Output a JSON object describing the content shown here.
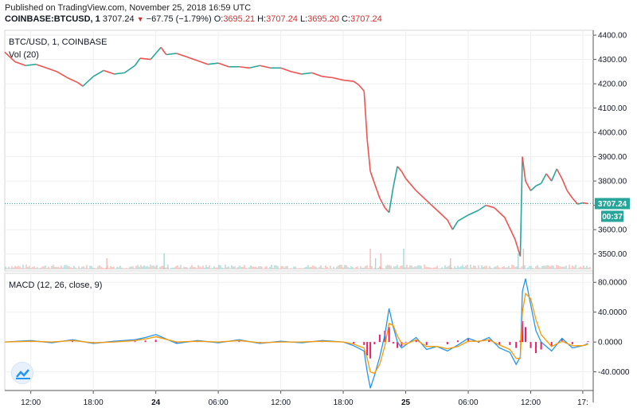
{
  "header": {
    "published": "Published on TradingView.com, November 25, 2018 16:59 UTC",
    "symbol": "COINBASE:BTCUSD, 1",
    "last": "3707.24",
    "change": "−67.75 (−1.79%)",
    "o_label": "O:",
    "o_val": "3695.21",
    "h_label": "H:",
    "h_val": "3707.24",
    "l_label": "L:",
    "l_val": "3695.20",
    "c_label": "C:",
    "c_val": "3707.24"
  },
  "price_pane": {
    "legend_symbol": "BTC/USD, 1, COINBASE",
    "legend_vol": "Vol (20)",
    "price_badge": "3707.24",
    "countdown_badge": "00:37"
  },
  "macd_pane": {
    "legend": "MACD (12, 26, close, 9)"
  },
  "colors": {
    "up": "#26a69a",
    "down": "#ef5350",
    "macd_line": "#2196f3",
    "signal_line": "#ff9800",
    "histogram": "#e91e63",
    "price_line": "#26a69a"
  },
  "chart_data": [
    {
      "type": "line",
      "title": "BTC/USD, 1, COINBASE",
      "y_axis_ticks": [
        "4400.00",
        "4300.00",
        "4200.00",
        "4100.00",
        "4000.00",
        "3900.00",
        "3800.00",
        "3700.00",
        "3600.00",
        "3500.00"
      ],
      "ylim": [
        3430,
        4420
      ],
      "x_ticks": [
        "12:00",
        "18:00",
        "24",
        "06:00",
        "12:00",
        "18:00",
        "25",
        "06:00",
        "12:00",
        "17:"
      ],
      "x_tick_hours": [
        12,
        18,
        24,
        30,
        36,
        42,
        48,
        54,
        60,
        65
      ],
      "xlim": [
        9.5,
        66.0
      ],
      "series": [
        {
          "values_x_hours": [
            9.5,
            10.5,
            11.5,
            12.5,
            13.5,
            14.5,
            15.5,
            16.5,
            17.0,
            18.0,
            19.0,
            20.0,
            21.0,
            22.0,
            22.5,
            23.5,
            24.5,
            25.0,
            26.0,
            27.0,
            28.0,
            29.0,
            30.0,
            31.0,
            32.0,
            33.0,
            34.0,
            35.0,
            36.0,
            37.0,
            38.0,
            39.0,
            40.0,
            41.0,
            42.0,
            43.0,
            43.5,
            44.0,
            44.3,
            44.6,
            45.0,
            45.5,
            46.0,
            46.4,
            46.8,
            47.2,
            47.6,
            48.0,
            48.4,
            49.0,
            50.0,
            51.0,
            52.0,
            52.5,
            53.0,
            54.0,
            55.0,
            55.7,
            56.5,
            57.5,
            58.5,
            59.0,
            59.2,
            59.5,
            60.0,
            60.5,
            61.0,
            61.5,
            62.0,
            62.5,
            63.0,
            63.5,
            64.0,
            64.5,
            65.0,
            65.5
          ],
          "values_y": [
            4330,
            4290,
            4275,
            4280,
            4265,
            4250,
            4225,
            4205,
            4190,
            4230,
            4255,
            4240,
            4245,
            4275,
            4305,
            4300,
            4350,
            4320,
            4325,
            4310,
            4295,
            4280,
            4285,
            4270,
            4270,
            4265,
            4275,
            4265,
            4265,
            4250,
            4240,
            4245,
            4230,
            4225,
            4215,
            4210,
            4195,
            4170,
            3970,
            3840,
            3790,
            3730,
            3690,
            3670,
            3775,
            3860,
            3840,
            3810,
            3790,
            3760,
            3720,
            3680,
            3640,
            3600,
            3635,
            3660,
            3680,
            3700,
            3690,
            3650,
            3560,
            3490,
            3900,
            3800,
            3760,
            3780,
            3790,
            3830,
            3800,
            3850,
            3810,
            3760,
            3730,
            3705,
            3710,
            3707.24
          ]
        }
      ],
      "volume_spikes_hours": [
        19.3,
        24.8,
        44.6,
        45.1,
        45.6,
        47.8,
        52.3,
        58.8,
        59.3
      ]
    },
    {
      "type": "line",
      "title": "MACD (12, 26, close, 9)",
      "y_axis_ticks": [
        "80.0000",
        "40.0000",
        "0.0000",
        "-40.0000"
      ],
      "ylim": [
        -65,
        92
      ],
      "series": [
        {
          "name": "MACD",
          "values_x_hours": [
            9.5,
            12,
            14,
            16,
            18,
            20,
            22,
            23,
            24,
            26,
            28,
            30,
            32,
            34,
            36,
            38,
            40,
            42,
            43,
            44,
            44.3,
            44.6,
            45,
            45.5,
            46,
            46.4,
            46.8,
            47.2,
            47.6,
            48,
            49,
            50,
            51,
            52,
            53,
            54,
            55,
            56,
            57,
            58,
            58.6,
            59,
            59.2,
            59.5,
            60,
            60.5,
            61,
            62,
            63,
            64,
            65,
            65.5
          ],
          "values_y": [
            0,
            2,
            -1,
            3,
            -2,
            1,
            3,
            6,
            10,
            -2,
            2,
            -1,
            3,
            -2,
            1,
            -1,
            2,
            0,
            -5,
            -12,
            -40,
            -62,
            -45,
            -20,
            10,
            45,
            20,
            0,
            -8,
            -4,
            6,
            -10,
            -6,
            -12,
            -4,
            5,
            0,
            6,
            -8,
            -14,
            -30,
            -20,
            68,
            85,
            50,
            15,
            0,
            -12,
            5,
            -8,
            -5,
            -2
          ]
        },
        {
          "name": "Signal",
          "values_x_hours": [
            9.5,
            12,
            14,
            16,
            18,
            20,
            22,
            23,
            24,
            26,
            28,
            30,
            32,
            34,
            36,
            38,
            40,
            42,
            43,
            44,
            44.3,
            44.6,
            45,
            45.5,
            46,
            46.4,
            46.8,
            47.2,
            47.6,
            48,
            49,
            50,
            51,
            52,
            53,
            54,
            55,
            56,
            57,
            58,
            58.6,
            59,
            59.2,
            59.5,
            60,
            60.5,
            61,
            62,
            63,
            64,
            65,
            65.5
          ],
          "values_y": [
            0,
            1,
            0,
            2,
            -1,
            0,
            2,
            4,
            7,
            0,
            1,
            0,
            2,
            -1,
            0,
            0,
            1,
            0,
            -3,
            -8,
            -22,
            -40,
            -42,
            -30,
            -5,
            25,
            22,
            8,
            -2,
            -3,
            3,
            -6,
            -6,
            -9,
            -6,
            1,
            1,
            3,
            -4,
            -10,
            -22,
            -22,
            40,
            65,
            58,
            30,
            10,
            -6,
            1,
            -5,
            -5,
            -3
          ]
        }
      ]
    }
  ]
}
